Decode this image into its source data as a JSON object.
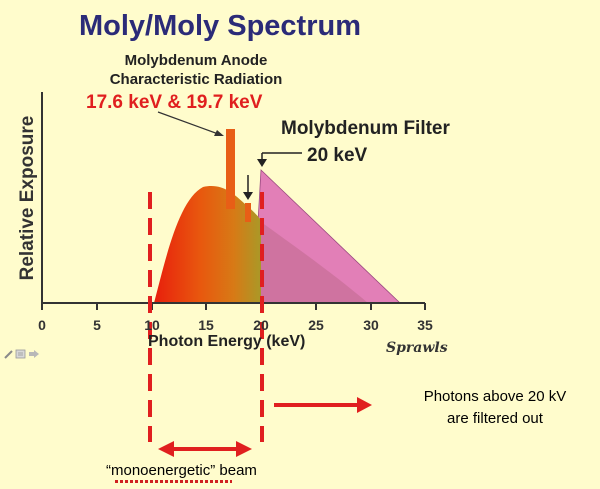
{
  "slide": {
    "title": "Moly/Moly Spectrum",
    "anode_label_line1": "Molybdenum Anode",
    "anode_label_line2": "Characteristic Radiation",
    "anode_energies": "17.6 keV & 19.7 keV",
    "filter_label": "Molybdenum Filter",
    "filter_energy": "20 keV",
    "signature": "Sprawls"
  },
  "axes": {
    "y_label": "Relative Exposure",
    "x_label": "Photon Energy (keV)",
    "x_ticks": [
      "0",
      "5",
      "10",
      "15",
      "20",
      "25",
      "30",
      "35"
    ]
  },
  "annotations": {
    "filtered_note_line1": "Photons above 20 kV",
    "filtered_note_line2": "are filtered out",
    "beam_label": "“monoenergetic” beam"
  },
  "colors": {
    "slide_background": "#fffccc",
    "title": "#2b2b78",
    "highlight_red": "#e01f1f",
    "filtered_spectrum": "#e27fb7",
    "spectrum_orange": "#ee5a10",
    "spectrum_olive": "#a88a22"
  },
  "icons": {
    "toolbar": [
      "pen-icon",
      "menu-icon",
      "arrow-icon"
    ]
  }
}
